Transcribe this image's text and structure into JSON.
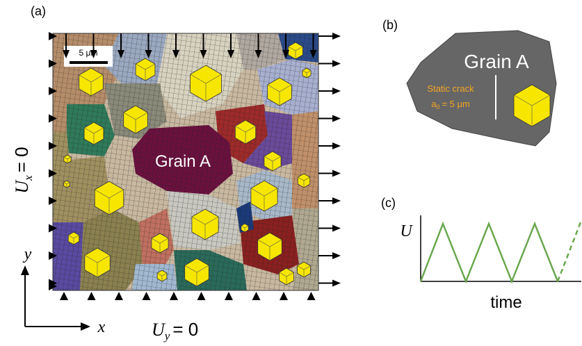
{
  "panel_a": {
    "label": "(a)",
    "scale_bar": "5 μm",
    "grain_label": "Grain A",
    "ux": {
      "symbol": "U",
      "subscript": "x",
      "equals": "= 0"
    },
    "uy": {
      "symbol": "U",
      "subscript": "y",
      "equals": "= 0"
    },
    "axis_y": "y",
    "axis_x": "x"
  },
  "panel_b": {
    "label": "(b)",
    "grain_label": "Grain A",
    "crack_title": "Static crack",
    "crack_length": {
      "symbol": "a",
      "subscript": "0",
      "equals": "= 5 μm"
    }
  },
  "panel_c": {
    "label": "(c)",
    "y_axis": "U",
    "x_axis": "time"
  }
}
